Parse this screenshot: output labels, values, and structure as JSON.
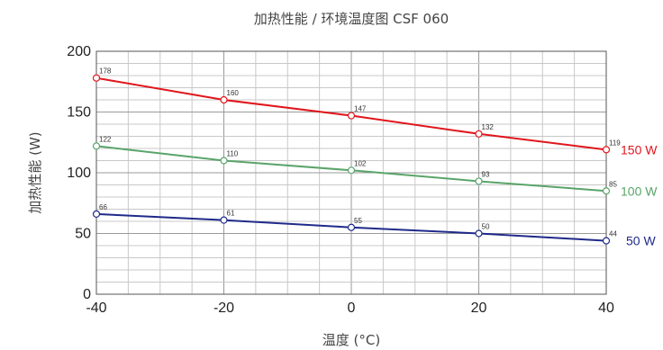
{
  "chart_data": {
    "type": "line",
    "title": "加热性能 / 环境温度图 CSF 060",
    "xlabel": "温度 (°C)",
    "ylabel": "加热性能 (W)",
    "x": [
      -40,
      -20,
      0,
      20,
      40
    ],
    "xlim": [
      -40,
      40
    ],
    "ylim": [
      0,
      200
    ],
    "x_ticks": [
      "-40",
      "-20",
      "0",
      "20",
      "40"
    ],
    "y_ticks": [
      "0",
      "50",
      "100",
      "150",
      "200"
    ],
    "grid": true,
    "legend": "right, inline series labels",
    "series": [
      {
        "name": "150 W",
        "color": "#e0161c",
        "values": [
          178,
          160,
          147,
          132,
          119
        ]
      },
      {
        "name": "100 W",
        "color": "#5aa46a",
        "values": [
          122,
          110,
          102,
          93,
          85
        ]
      },
      {
        "name": "50 W",
        "color": "#1f2a8a",
        "values": [
          66,
          61,
          55,
          50,
          44
        ]
      }
    ]
  }
}
